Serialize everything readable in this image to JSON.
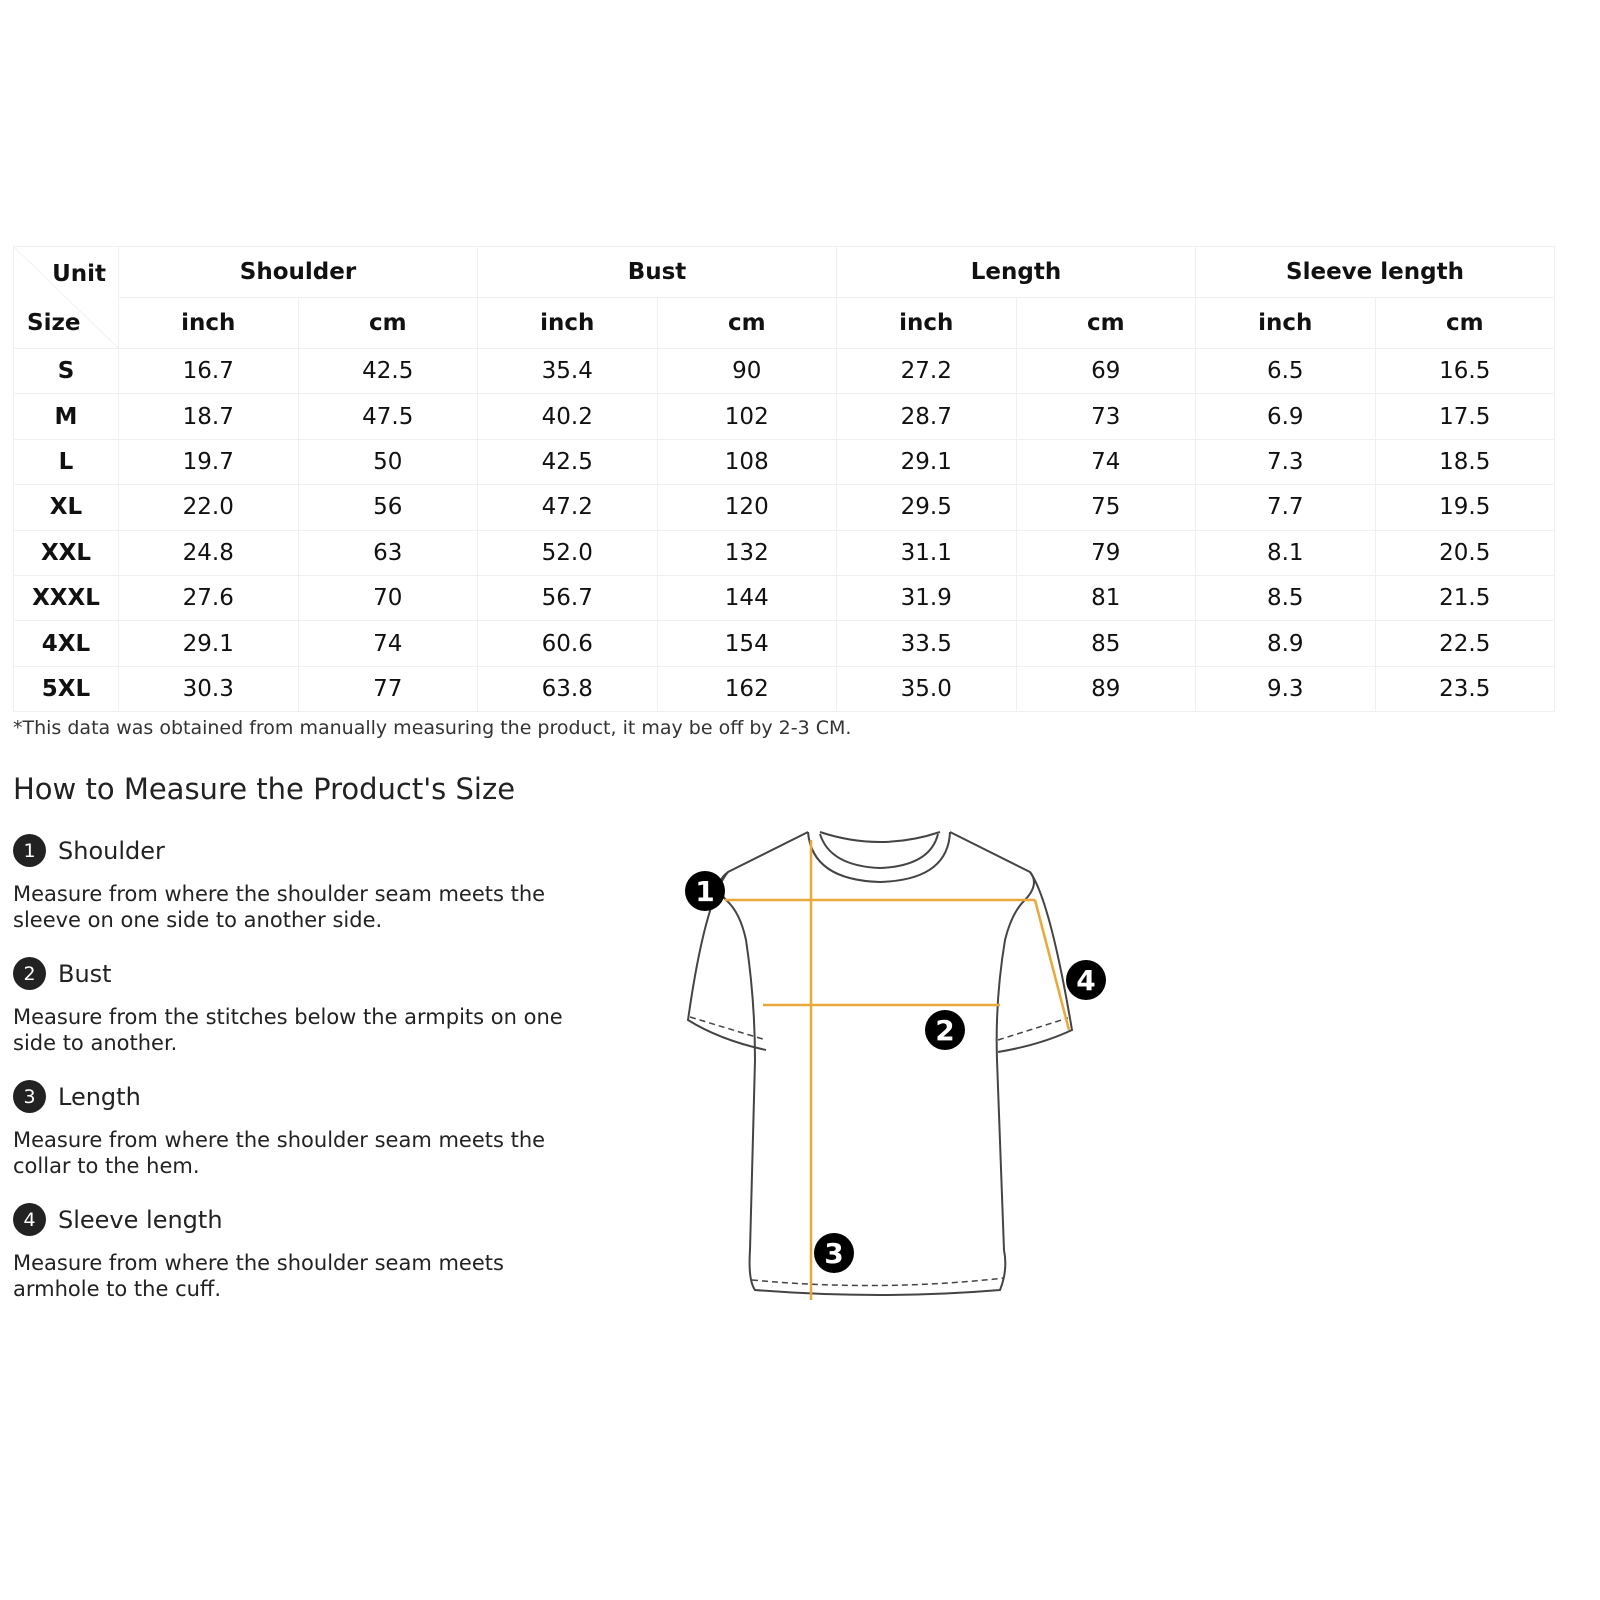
{
  "table": {
    "unit_label": "Unit",
    "size_label": "Size",
    "groups": [
      "Shoulder",
      "Bust",
      "Length",
      "Sleeve length"
    ],
    "subunits": [
      "inch",
      "cm",
      "inch",
      "cm",
      "inch",
      "cm",
      "inch",
      "cm"
    ],
    "rows": [
      [
        "S",
        "16.7",
        "42.5",
        "35.4",
        "90",
        "27.2",
        "69",
        "6.5",
        "16.5"
      ],
      [
        "M",
        "18.7",
        "47.5",
        "40.2",
        "102",
        "28.7",
        "73",
        "6.9",
        "17.5"
      ],
      [
        "L",
        "19.7",
        "50",
        "42.5",
        "108",
        "29.1",
        "74",
        "7.3",
        "18.5"
      ],
      [
        "XL",
        "22.0",
        "56",
        "47.2",
        "120",
        "29.5",
        "75",
        "7.7",
        "19.5"
      ],
      [
        "XXL",
        "24.8",
        "63",
        "52.0",
        "132",
        "31.1",
        "79",
        "8.1",
        "20.5"
      ],
      [
        "XXXL",
        "27.6",
        "70",
        "56.7",
        "144",
        "31.9",
        "81",
        "8.5",
        "21.5"
      ],
      [
        "4XL",
        "29.1",
        "74",
        "60.6",
        "154",
        "33.5",
        "85",
        "8.9",
        "22.5"
      ],
      [
        "5XL",
        "30.3",
        "77",
        "63.8",
        "162",
        "35.0",
        "89",
        "9.3",
        "23.5"
      ]
    ]
  },
  "note": "*This data was obtained from manually measuring the product, it may be off by 2-3 CM.",
  "howto_title": "How to Measure the Product's Size",
  "items": [
    {
      "n": "1",
      "title": "Shoulder",
      "desc": "Measure from where the shoulder seam meets the sleeve on one side to another side."
    },
    {
      "n": "2",
      "title": "Bust",
      "desc": "Measure from the stitches below the armpits on one side to another."
    },
    {
      "n": "3",
      "title": "Length",
      "desc": "Measure from where the shoulder seam meets the collar to the hem."
    },
    {
      "n": "4",
      "title": "Sleeve length",
      "desc": "Measure from where the shoulder seam meets armhole to the cuff."
    }
  ],
  "diagram_markers": [
    "1",
    "2",
    "3",
    "4"
  ],
  "colors": {
    "measure_line": "#e8a83a",
    "outline": "#444444"
  }
}
